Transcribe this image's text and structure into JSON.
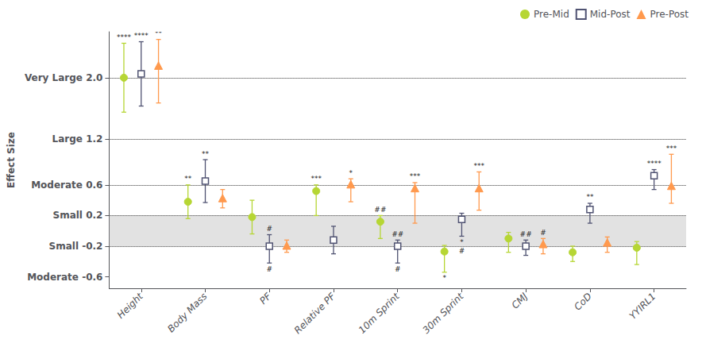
{
  "chart_data": {
    "type": "scatter",
    "categories": [
      "Height",
      "Body Mass",
      "PF",
      "Relative PF",
      "10m Sprint",
      "30m Sprint",
      "CMJ",
      "CoD",
      "YYIRL1"
    ],
    "ylabel": "Effect Size",
    "ylim": [
      -0.75,
      2.6
    ],
    "yticks": [
      {
        "value": 2.0,
        "label": "Very Large 2.0"
      },
      {
        "value": 1.2,
        "label": "Large 1.2"
      },
      {
        "value": 0.6,
        "label": "Moderate 0.6"
      },
      {
        "value": 0.2,
        "label": "Small 0.2"
      },
      {
        "value": -0.2,
        "label": "Small -0.2"
      },
      {
        "value": -0.6,
        "label": "Moderate -0.6"
      }
    ],
    "grid": false,
    "legend": "upper right",
    "shaded_region": [
      -0.2,
      0.2
    ],
    "reference_lines": [
      2.0,
      1.2,
      0.6,
      0.2,
      -0.2
    ],
    "series": [
      {
        "name": "Pre-Mid",
        "marker": "circle",
        "values": [
          2.0,
          0.38,
          0.18,
          0.52,
          0.12,
          -0.27,
          -0.1,
          -0.28,
          -0.22
        ],
        "errors_low": [
          0.45,
          0.22,
          0.22,
          0.32,
          0.22,
          0.27,
          0.18,
          0.12,
          0.22
        ],
        "errors_high": [
          0.45,
          0.22,
          0.22,
          0.08,
          0.08,
          0.08,
          0.08,
          0.08,
          0.08
        ],
        "labels_above": [
          "****",
          "**",
          null,
          "***",
          "##",
          null,
          null,
          null,
          null
        ],
        "labels_below": [
          null,
          null,
          null,
          null,
          null,
          "*",
          null,
          null,
          null
        ]
      },
      {
        "name": "Mid-Post",
        "marker": "open-square",
        "values": [
          2.05,
          0.65,
          -0.2,
          -0.12,
          -0.2,
          0.15,
          -0.2,
          0.28,
          0.72
        ],
        "errors_low": [
          0.42,
          0.28,
          0.22,
          0.18,
          0.22,
          0.22,
          0.12,
          0.18,
          0.18
        ],
        "errors_high": [
          0.42,
          0.28,
          0.15,
          0.18,
          0.08,
          0.08,
          0.08,
          0.08,
          0.08
        ],
        "labels_above": [
          "****",
          "**",
          "#",
          null,
          "##",
          null,
          "##",
          "**",
          "****"
        ],
        "labels_below": [
          null,
          null,
          "#",
          null,
          "#",
          [
            "*",
            "#"
          ],
          null,
          null,
          null
        ]
      },
      {
        "name": "Pre-Post",
        "marker": "triangle",
        "values": [
          2.15,
          0.42,
          -0.2,
          0.6,
          0.55,
          0.55,
          -0.18,
          -0.16,
          0.58
        ],
        "errors_low": [
          0.48,
          0.12,
          0.08,
          0.22,
          0.45,
          0.28,
          0.12,
          0.12,
          0.22
        ],
        "errors_high": [
          0.35,
          0.12,
          0.08,
          0.08,
          0.08,
          0.22,
          0.08,
          0.08,
          0.42
        ],
        "labels_above": [
          "**",
          null,
          null,
          "*",
          "***",
          "***",
          "#",
          null,
          "***"
        ],
        "labels_below": [
          null,
          null,
          null,
          null,
          null,
          null,
          null,
          null,
          null
        ]
      }
    ]
  }
}
